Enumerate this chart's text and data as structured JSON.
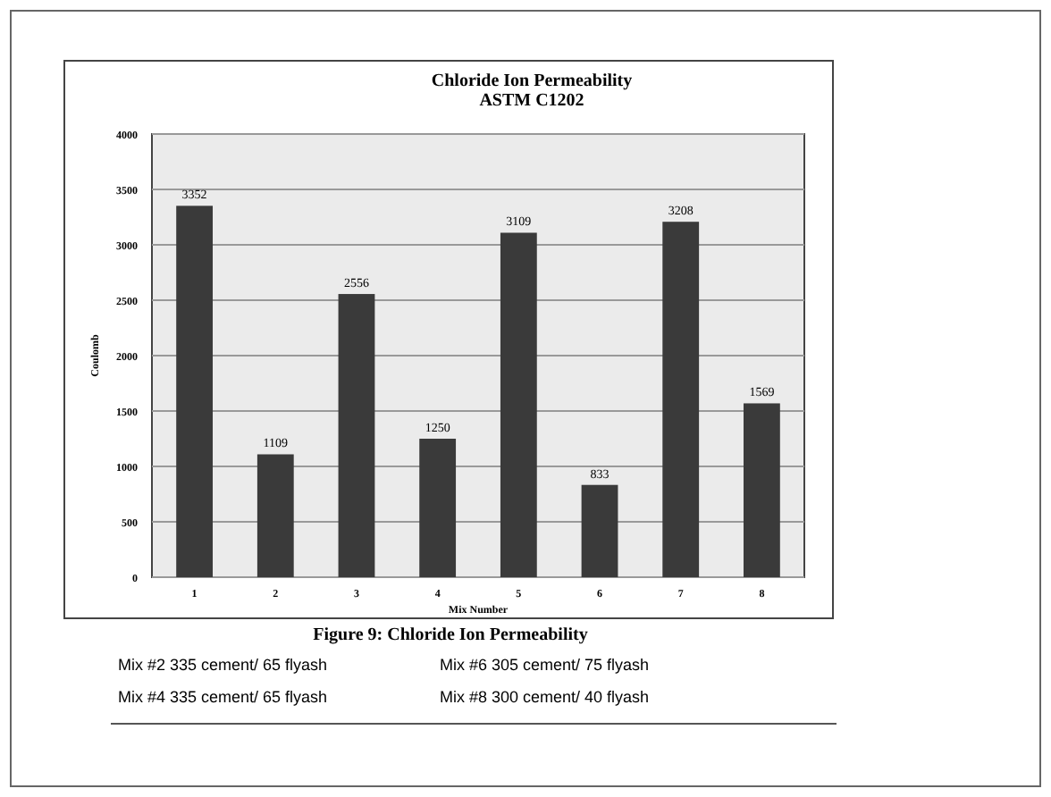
{
  "chart_data": {
    "type": "bar",
    "title": "Chloride Ion Permeability",
    "subtitle": "ASTM C1202",
    "xlabel": "Mix Number",
    "ylabel": "Coulomb",
    "categories": [
      "1",
      "2",
      "3",
      "4",
      "5",
      "6",
      "7",
      "8"
    ],
    "values": [
      3352,
      1109,
      2556,
      1250,
      3109,
      833,
      3208,
      1569
    ],
    "color": "#3a3a3a",
    "data_labels": true,
    "ylim": [
      0,
      4000
    ],
    "yticks": [
      0,
      500,
      1000,
      1500,
      2000,
      2500,
      3000,
      3500,
      4000
    ],
    "grid": "y",
    "annotations": [
      "Figure 9: Chloride Ion Permeability",
      "Mix #2 335 cement/ 65 flyash",
      "Mix #4 335 cement/ 65 flyash",
      "Mix #6 305 cement/ 75 flyash",
      "Mix #8 300 cement/ 40 flyash"
    ]
  }
}
